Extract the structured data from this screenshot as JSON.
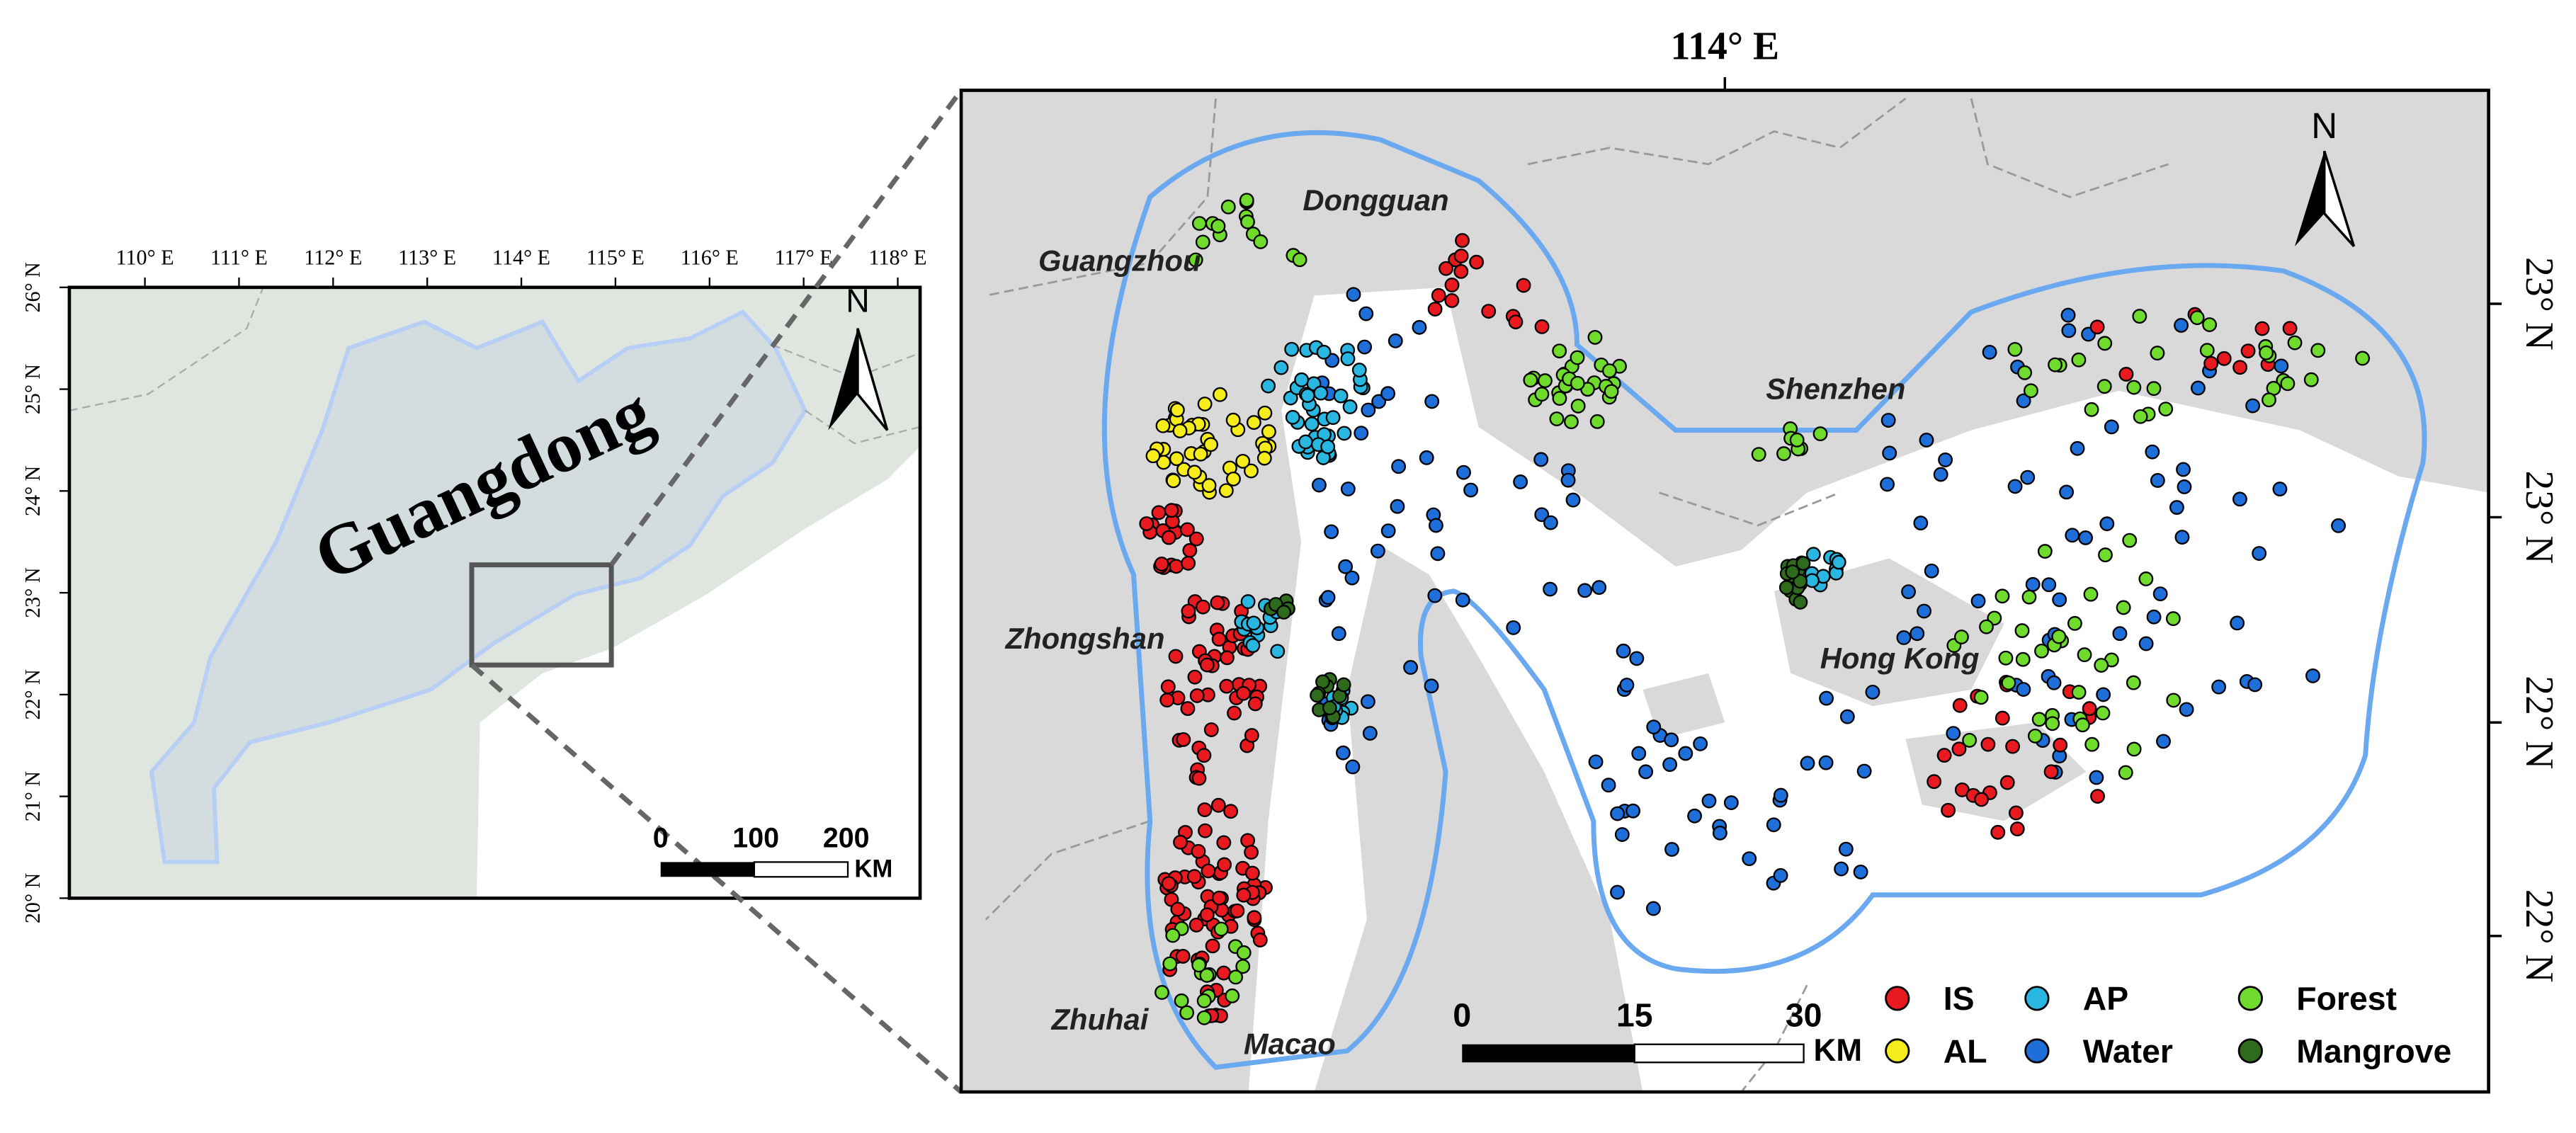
{
  "overview": {
    "lon_labels": [
      "110° E",
      "111° E",
      "112° E",
      "113° E",
      "114° E",
      "115° E",
      "116° E",
      "117° E",
      "118° E"
    ],
    "lat_labels": [
      "26° N",
      "25° N",
      "24° N",
      "23° N",
      "22° N",
      "21° N",
      "20° N"
    ],
    "region_label": "Guangdong",
    "north": "N",
    "scale_labels": [
      "0",
      "100",
      "200"
    ],
    "scale_unit": "KM"
  },
  "detail": {
    "lon_label": "114° E",
    "lat_labels": [
      "23° N",
      "23° N",
      "22° N",
      "22° N"
    ],
    "north": "N",
    "places": [
      "Guangzhou",
      "Dongguan",
      "Shenzhen",
      "Zhongshan",
      "Hong Kong",
      "Zhuhai",
      "Macao"
    ],
    "scale_labels": [
      "0",
      "15",
      "30"
    ],
    "scale_unit": "KM",
    "legend": [
      {
        "name": "IS",
        "color": "#e8191f"
      },
      {
        "name": "AL",
        "color": "#f7ec1b"
      },
      {
        "name": "AP",
        "color": "#29b6e0"
      },
      {
        "name": "Water",
        "color": "#1e6fd9"
      },
      {
        "name": "Forest",
        "color": "#6fdc2d"
      },
      {
        "name": "Mangrove",
        "color": "#2e6b1c"
      }
    ]
  }
}
